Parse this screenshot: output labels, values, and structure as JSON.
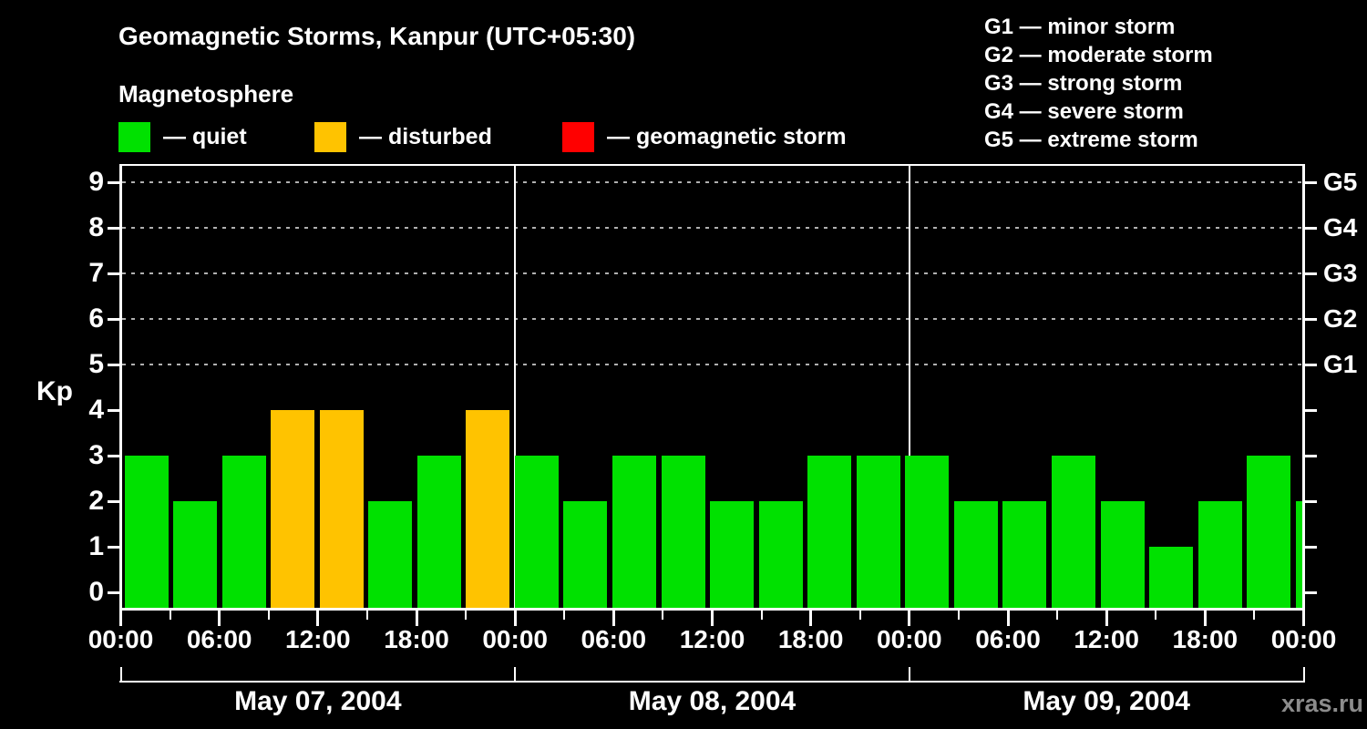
{
  "title": "Geomagnetic Storms, Kanpur (UTC+05:30)",
  "subtitle": "Magnetosphere",
  "kp_axis_label": "Kp",
  "watermark": "xras.ru",
  "legend": [
    {
      "key": "quiet",
      "label": "— quiet",
      "color": "#00E100"
    },
    {
      "key": "disturbed",
      "label": "— disturbed",
      "color": "#FFC300"
    },
    {
      "key": "storm",
      "label": "— geomagnetic storm",
      "color": "#FF0000"
    }
  ],
  "storm_scale": [
    "G1 — minor storm",
    "G2 — moderate storm",
    "G3 — strong storm",
    "G4 — severe storm",
    "G5 — extreme storm"
  ],
  "chart_data": {
    "type": "bar",
    "title": "Geomagnetic Storms, Kanpur (UTC+05:30)",
    "subtitle": "Magnetosphere",
    "ylabel": "Kp",
    "ylim": [
      0,
      9.4
    ],
    "yticks": [
      0,
      1,
      2,
      3,
      4,
      5,
      6,
      7,
      8,
      9
    ],
    "gridlines_at": [
      5,
      6,
      7,
      8,
      9
    ],
    "grid": "dotted",
    "legend_position": "top",
    "right_axis": [
      {
        "kp": 5,
        "label": "G1"
      },
      {
        "kp": 6,
        "label": "G2"
      },
      {
        "kp": 7,
        "label": "G3"
      },
      {
        "kp": 8,
        "label": "G4"
      },
      {
        "kp": 9,
        "label": "G5"
      }
    ],
    "interval_hours": 3,
    "x_tick_labels": [
      "00:00",
      "06:00",
      "12:00",
      "18:00",
      "00:00",
      "06:00",
      "12:00",
      "18:00",
      "00:00",
      "06:00",
      "12:00",
      "18:00",
      "00:00"
    ],
    "days": [
      {
        "date": "May 07, 2004",
        "values": [
          3,
          2,
          3,
          4,
          4,
          2,
          3,
          4
        ],
        "status": [
          "quiet",
          "quiet",
          "quiet",
          "disturbed",
          "disturbed",
          "quiet",
          "quiet",
          "disturbed"
        ]
      },
      {
        "date": "May 08, 2004",
        "values": [
          3,
          2,
          3,
          3,
          2,
          2,
          3,
          3
        ],
        "status": [
          "quiet",
          "quiet",
          "quiet",
          "quiet",
          "quiet",
          "quiet",
          "quiet",
          "quiet"
        ]
      },
      {
        "date": "May 09, 2004",
        "values": [
          3,
          2,
          2,
          3,
          2,
          1,
          2,
          3
        ],
        "status": [
          "quiet",
          "quiet",
          "quiet",
          "quiet",
          "quiet",
          "quiet",
          "quiet",
          "quiet"
        ]
      }
    ],
    "partial_next_bar": {
      "value": 2,
      "status": "quiet"
    },
    "colors": {
      "quiet": "#00E100",
      "disturbed": "#FFC300",
      "storm": "#FF0000",
      "axis": "#FFFFFF",
      "grid": "#B0B0B0",
      "background": "#000000",
      "watermark": "#8C8C8C"
    }
  }
}
